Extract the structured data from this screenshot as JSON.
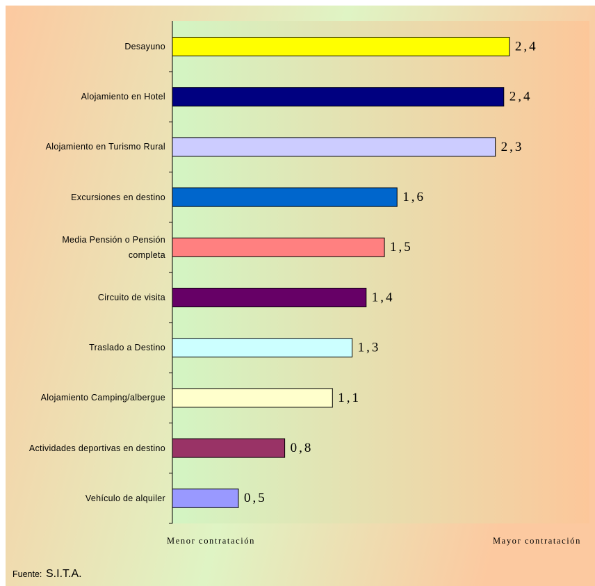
{
  "chart_data": {
    "type": "hbar",
    "categories": [
      "Desayuno",
      "Alojamiento en Hotel",
      "Alojamiento en Turismo Rural",
      "Excursiones en destino",
      "Media Pensión o Pensión completa",
      "Circuito de visita",
      "Traslado a Destino",
      "Alojamiento Camping/albergue",
      "Actividades deportivas en destino",
      "Vehículo de alquiler"
    ],
    "values": [
      2.4,
      2.36,
      2.3,
      1.6,
      1.51,
      1.38,
      1.28,
      1.14,
      0.8,
      0.47
    ],
    "value_labels": [
      "2,4",
      "2,4",
      "2,3",
      "1,6",
      "1,5",
      "1,4",
      "1,3",
      "1,1",
      "0,8",
      "0,5"
    ],
    "colors": [
      "#ffff00",
      "#000080",
      "#ccccff",
      "#0066cc",
      "#ff8080",
      "#660066",
      "#ccffff",
      "#ffffcc",
      "#993366",
      "#9999ff"
    ],
    "xlim": [
      0,
      2.97
    ],
    "xlabel_left": "Menor contratación",
    "xlabel_right": "Mayor contratación",
    "source_label": "Fuente:",
    "source": "S.I.T.A."
  }
}
